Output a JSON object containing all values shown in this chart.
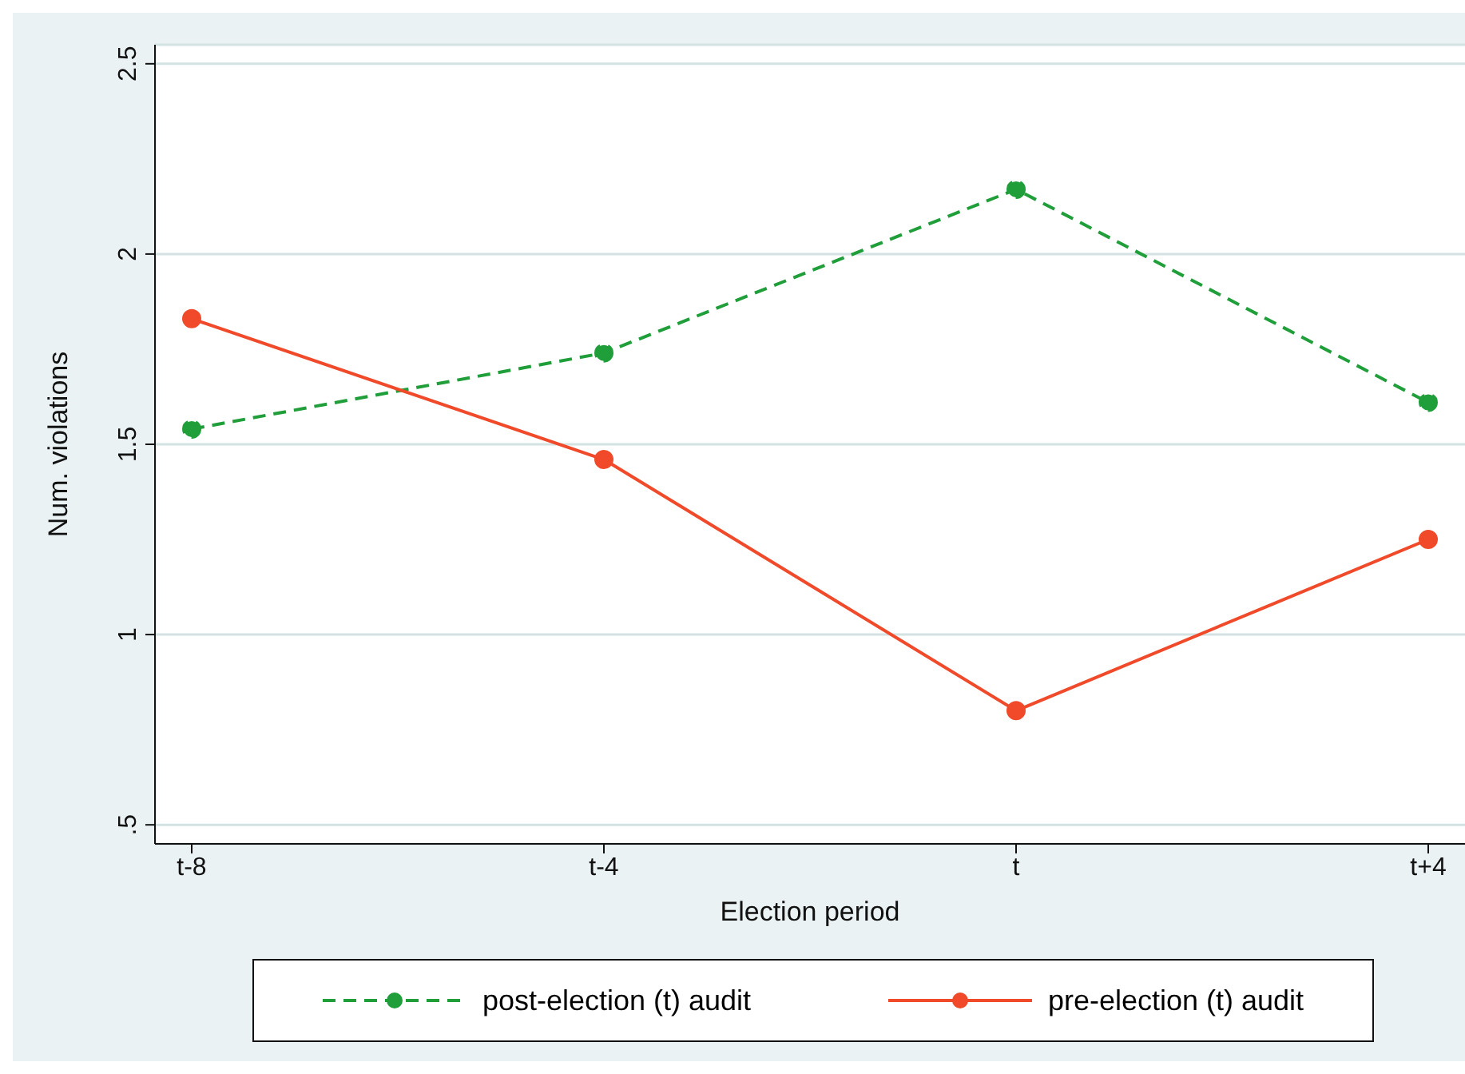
{
  "chart_data": {
    "type": "line",
    "xlabel": "Election period",
    "ylabel": "Num. violations",
    "categories": [
      "t-8",
      "t-4",
      "t",
      "t+4"
    ],
    "series": [
      {
        "name": "post-election (t) audit",
        "color": "#1f9e3a",
        "values": [
          1.54,
          1.74,
          2.17,
          1.61
        ],
        "line_style": "dashed"
      },
      {
        "name": "pre-election (t) audit",
        "color": "#f04a2a",
        "values": [
          1.83,
          1.46,
          0.8,
          1.25
        ],
        "line_style": "solid"
      }
    ],
    "ylim": [
      0.45,
      2.55
    ],
    "yticks": [
      {
        "value": 0.5,
        "label": ".5"
      },
      1,
      1.5,
      2,
      2.5
    ],
    "grid": "y",
    "legend": "bottom",
    "marker": "circle"
  }
}
